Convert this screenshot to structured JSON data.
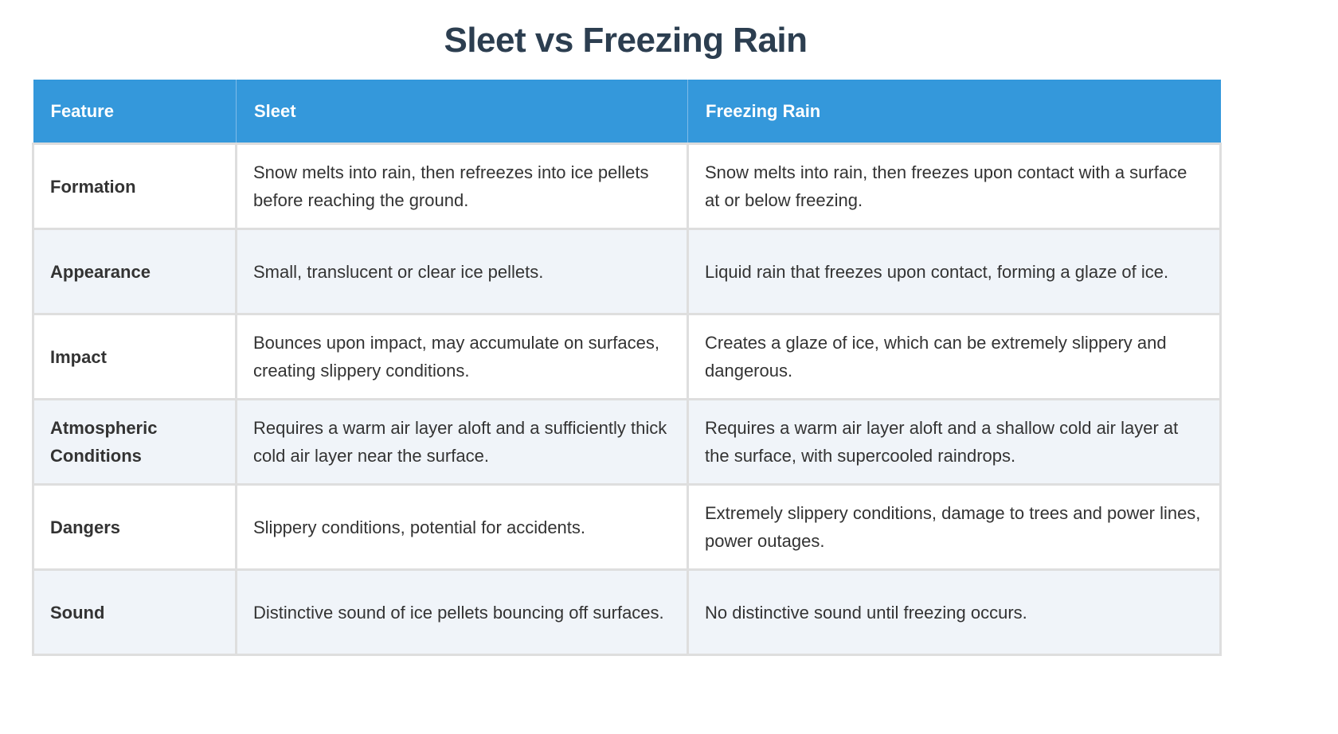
{
  "title": "Sleet vs Freezing Rain",
  "table": {
    "headers": [
      "Feature",
      "Sleet",
      "Freezing Rain"
    ],
    "rows": [
      {
        "feature": "Formation",
        "sleet": "Snow melts into rain, then refreezes into ice pellets before reaching the ground.",
        "freezing_rain": "Snow melts into rain, then freezes upon contact with a surface at or below freezing."
      },
      {
        "feature": "Appearance",
        "sleet": "Small, translucent or clear ice pellets.",
        "freezing_rain": "Liquid rain that freezes upon contact, forming a glaze of ice."
      },
      {
        "feature": "Impact",
        "sleet": "Bounces upon impact, may accumulate on surfaces, creating slippery conditions.",
        "freezing_rain": "Creates a glaze of ice, which can be extremely slippery and dangerous."
      },
      {
        "feature": "Atmospheric Conditions",
        "sleet": "Requires a warm air layer aloft and a sufficiently thick cold air layer near the surface.",
        "freezing_rain": "Requires a warm air layer aloft and a shallow cold air layer at the surface, with supercooled raindrops."
      },
      {
        "feature": "Dangers",
        "sleet": "Slippery conditions, potential for accidents.",
        "freezing_rain": "Extremely slippery conditions, damage to trees and power lines, power outages."
      },
      {
        "feature": "Sound",
        "sleet": "Distinctive sound of ice pellets bouncing off surfaces.",
        "freezing_rain": "No distinctive sound until freezing occurs."
      }
    ]
  },
  "colors": {
    "header_bg": "#3498db",
    "title": "#2c3e50",
    "alt_row": "#f0f4f9"
  }
}
